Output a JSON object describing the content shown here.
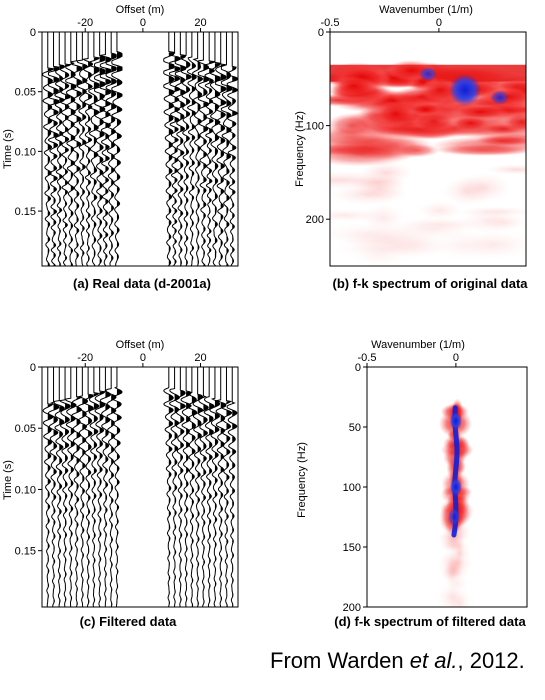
{
  "figure_credit": {
    "prefix": "From Warden ",
    "emphasis": "et al.",
    "suffix": ", 2012."
  },
  "chart_data": [
    {
      "id": "a",
      "type": "seismic-wiggle",
      "caption": "(a) Real data (d-2001a)",
      "xlabel": "Offset (m)",
      "ylabel": "Time (s)",
      "xlim": [
        -35,
        33
      ],
      "ylim": [
        0,
        0.196
      ],
      "x_ticks": [
        -20,
        0,
        20
      ],
      "y_ticks": [
        0,
        0.05,
        0.1,
        0.15
      ],
      "y_tick_labels": [
        "0",
        "0.05",
        "0.10",
        "0.15"
      ],
      "trace_offsets": [
        -33,
        -31,
        -29,
        -27,
        -25,
        -23,
        -21,
        -19,
        -17,
        -15,
        -13,
        -11,
        -9,
        9,
        11,
        13,
        15,
        17,
        19,
        21,
        23,
        25,
        27,
        29,
        31
      ],
      "energy": "strong"
    },
    {
      "id": "b",
      "type": "heatmap",
      "caption": "(b) f-k spectrum of original data",
      "xlabel": "Wavenumber (1/m)",
      "ylabel": "Frequency (Hz)",
      "xlim": [
        -0.5,
        0.4
      ],
      "ylim": [
        0,
        250
      ],
      "x_ticks": [
        -0.5,
        0
      ],
      "y_ticks": [
        0,
        100,
        200
      ],
      "colormap": "white-red-blue",
      "energy_band_hz": [
        35,
        250
      ],
      "peaks": [
        {
          "k": 0.12,
          "f": 62,
          "level": "max"
        },
        {
          "k": -0.05,
          "f": 45,
          "level": "high"
        },
        {
          "k": 0.28,
          "f": 70,
          "level": "high"
        }
      ]
    },
    {
      "id": "c",
      "type": "seismic-wiggle",
      "caption": "(c) Filtered data",
      "xlabel": "Offset (m)",
      "ylabel": "Time (s)",
      "xlim": [
        -35,
        33
      ],
      "ylim": [
        0,
        0.196
      ],
      "x_ticks": [
        -20,
        0,
        20
      ],
      "y_ticks": [
        0,
        0.05,
        0.1,
        0.15
      ],
      "y_tick_labels": [
        "0",
        "0.05",
        "0.10",
        "0.15"
      ],
      "trace_offsets": [
        -33,
        -31,
        -29,
        -27,
        -25,
        -23,
        -21,
        -19,
        -17,
        -15,
        -13,
        -11,
        -9,
        9,
        11,
        13,
        15,
        17,
        19,
        21,
        23,
        25,
        27,
        29,
        31
      ],
      "energy": "filtered"
    },
    {
      "id": "d",
      "type": "heatmap",
      "caption": "(d) f-k spectrum of filtered data",
      "xlabel": "Wavenumber (1/m)",
      "ylabel": "Frequency (Hz)",
      "xlim": [
        -0.5,
        0.4
      ],
      "ylim": [
        0,
        200
      ],
      "x_ticks": [
        -0.5,
        0
      ],
      "y_ticks": [
        0,
        50,
        100,
        150,
        200
      ],
      "colormap": "white-red-blue",
      "ridge_k_center": 0,
      "ridge_f_range_hz": [
        30,
        200
      ],
      "peaks": [
        {
          "k": 0.0,
          "f": 45,
          "level": "max"
        },
        {
          "k": 0.0,
          "f": 100,
          "level": "max"
        },
        {
          "k": -0.01,
          "f": 125,
          "level": "high"
        }
      ]
    }
  ]
}
